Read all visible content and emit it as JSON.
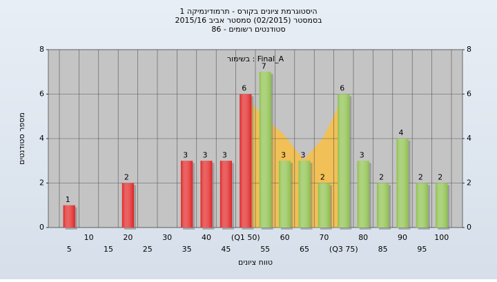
{
  "chart_data": {
    "type": "bar",
    "title": "היסטוגרמת ציונים בקורס - תרמודינמיקה 1",
    "subtitle": "בסמסטר  (02/2015)  סמסטר אביב 2015/16",
    "subtitle2": "סטודנטים רשומים - 86",
    "annotation": "בשימור : Final_A",
    "y_label": "מספר סטודנטים",
    "x_label": "טווח ציונים",
    "categories": [
      "5",
      "10",
      "15",
      "20",
      "25",
      "30",
      "35",
      "40",
      "45",
      "(Q1 50)",
      "55",
      "60",
      "65",
      "70",
      "(Q3 75)",
      "80",
      "85",
      "90",
      "95",
      "100"
    ],
    "values": [
      1,
      0,
      0,
      2,
      0,
      0,
      3,
      3,
      3,
      6,
      7,
      3,
      3,
      2,
      6,
      3,
      2,
      4,
      2,
      2
    ],
    "colors": [
      "#e02020",
      "#e02020",
      "#e02020",
      "#e02020",
      "#e02020",
      "#e02020",
      "#e02020",
      "#e02020",
      "#e02020",
      "#e02020",
      "#8cc04a",
      "#8cc04a",
      "#8cc04a",
      "#8cc04a",
      "#8cc04a",
      "#8cc04a",
      "#8cc04a",
      "#8cc04a",
      "#8cc04a",
      "#8cc04a"
    ],
    "ylim": [
      0,
      8
    ],
    "yticks": [
      0,
      2,
      4,
      6,
      8
    ],
    "y2lim": [
      0,
      8
    ],
    "y2ticks": [
      0,
      2,
      4,
      6,
      8
    ],
    "grid": true
  }
}
